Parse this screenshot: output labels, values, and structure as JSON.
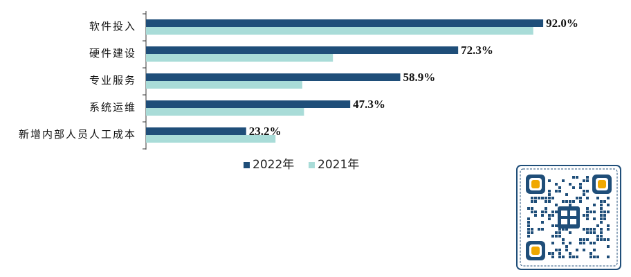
{
  "chart_data": {
    "type": "bar",
    "orientation": "horizontal",
    "categories": [
      "软件投入",
      "硬件建设",
      "专业服务",
      "系统运维",
      "新增内部人员人工成本"
    ],
    "series": [
      {
        "name": "2022年",
        "values": [
          92.0,
          72.3,
          58.9,
          47.3,
          23.2
        ],
        "color": "#1f4e79",
        "labels": [
          "92.0%",
          "72.3%",
          "58.9%",
          "47.3%",
          "23.2%"
        ]
      },
      {
        "name": "2021年",
        "values": [
          89.7,
          43.3,
          36.2,
          36.6,
          30.0
        ],
        "color": "#a9dcd8"
      }
    ],
    "xlim": [
      0,
      100
    ],
    "legend_position": "bottom",
    "grid": false
  },
  "qr": {
    "icon": "qr-code-icon",
    "frame_color": "#1f4e79",
    "corner_color": "#f0a800"
  }
}
